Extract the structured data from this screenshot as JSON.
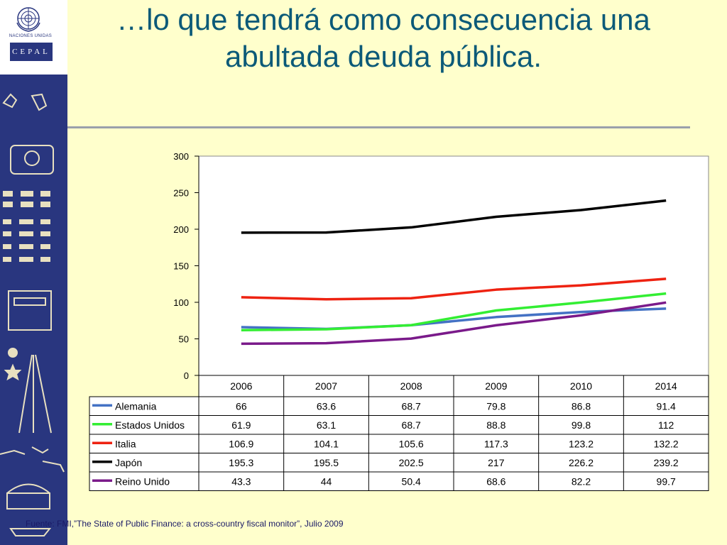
{
  "header": {
    "title_line1": "…lo que tendrá como consecuencia una",
    "title_line2": "abultada deuda pública.",
    "org_name": "NACIONES UNIDAS",
    "org_logo_text": "CEPAL"
  },
  "footer": {
    "source": "Fuente: FMI,”The State of Public Finance: a cross-country fiscal monitor”, Julio 2009"
  },
  "colors": {
    "background": "#ffffcc",
    "title": "#0c5a78",
    "sidebar": "#29367f"
  },
  "chart_data": {
    "type": "line",
    "title": "",
    "xlabel": "",
    "ylabel": "",
    "categories": [
      "2006",
      "2007",
      "2008",
      "2009",
      "2010",
      "2014"
    ],
    "ylim": [
      0,
      300
    ],
    "yticks": [
      "0",
      "50",
      "100",
      "150",
      "200",
      "250",
      "300"
    ],
    "grid": false,
    "legend": "data-table-below",
    "series": [
      {
        "name": "Alemania",
        "color": "#4472c4",
        "values": [
          66,
          63.6,
          68.7,
          79.8,
          86.8,
          91.4
        ],
        "labels": [
          "66",
          "63.6",
          "68.7",
          "79.8",
          "86.8",
          "91.4"
        ]
      },
      {
        "name": "Estados Unidos",
        "color": "#33ee33",
        "values": [
          61.9,
          63.1,
          68.7,
          88.8,
          99.8,
          112
        ],
        "labels": [
          "61.9",
          "63.1",
          "68.7",
          "88.8",
          "99.8",
          "112"
        ]
      },
      {
        "name": "Italia",
        "color": "#ee2211",
        "values": [
          106.9,
          104.1,
          105.6,
          117.3,
          123.2,
          132.2
        ],
        "labels": [
          "106.9",
          "104.1",
          "105.6",
          "117.3",
          "123.2",
          "132.2"
        ]
      },
      {
        "name": "Japón",
        "color": "#000000",
        "values": [
          195.3,
          195.5,
          202.5,
          217,
          226.2,
          239.2
        ],
        "labels": [
          "195.3",
          "195.5",
          "202.5",
          "217",
          "226.2",
          "239.2"
        ]
      },
      {
        "name": "Reino Unido",
        "color": "#7a1a8a",
        "values": [
          43.3,
          44,
          50.4,
          68.6,
          82.2,
          99.7
        ],
        "labels": [
          "43.3",
          "44",
          "50.4",
          "68.6",
          "82.2",
          "99.7"
        ]
      }
    ]
  }
}
